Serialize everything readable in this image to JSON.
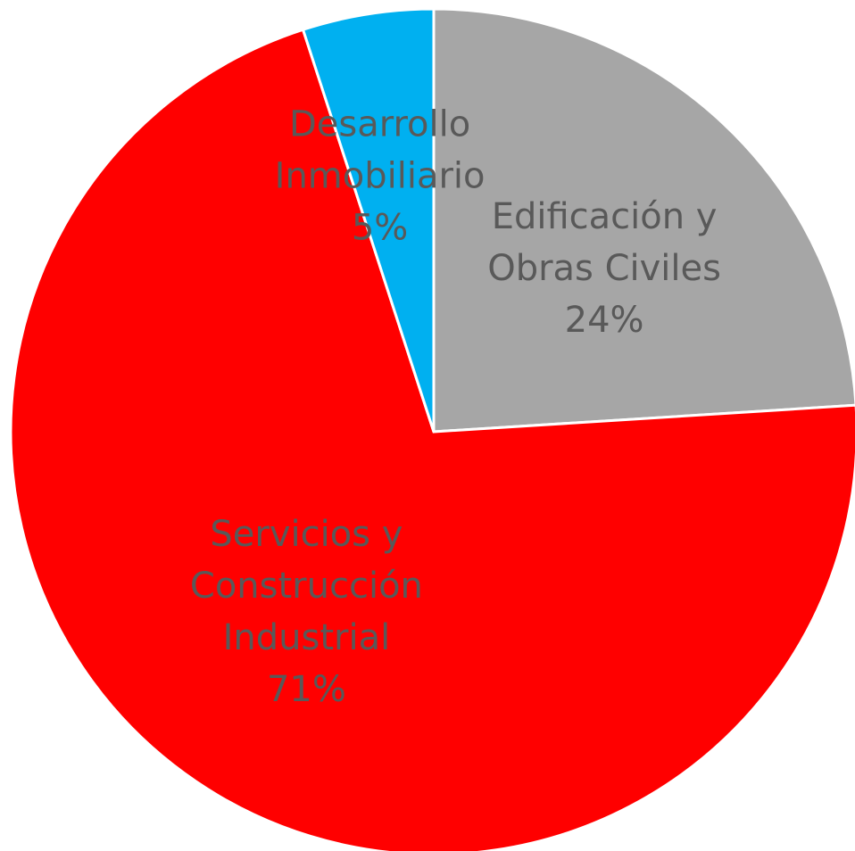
{
  "chart_data": {
    "type": "pie",
    "slices": [
      {
        "label_lines": [
          "Edificación y",
          "Obras Civiles"
        ],
        "percent_label": "24%",
        "value": 24,
        "color": "#A6A6A6"
      },
      {
        "label_lines": [
          "Servicios y",
          "Construcción",
          "Industrial"
        ],
        "percent_label": "71%",
        "value": 71,
        "color": "#FF0000"
      },
      {
        "label_lines": [
          "Desarrollo",
          "Inmobiliario"
        ],
        "percent_label": "5%",
        "value": 5,
        "color": "#00B0F0"
      }
    ],
    "start": "12 o'clock",
    "direction": "clockwise",
    "legend": "none",
    "label_color": "#595959"
  }
}
